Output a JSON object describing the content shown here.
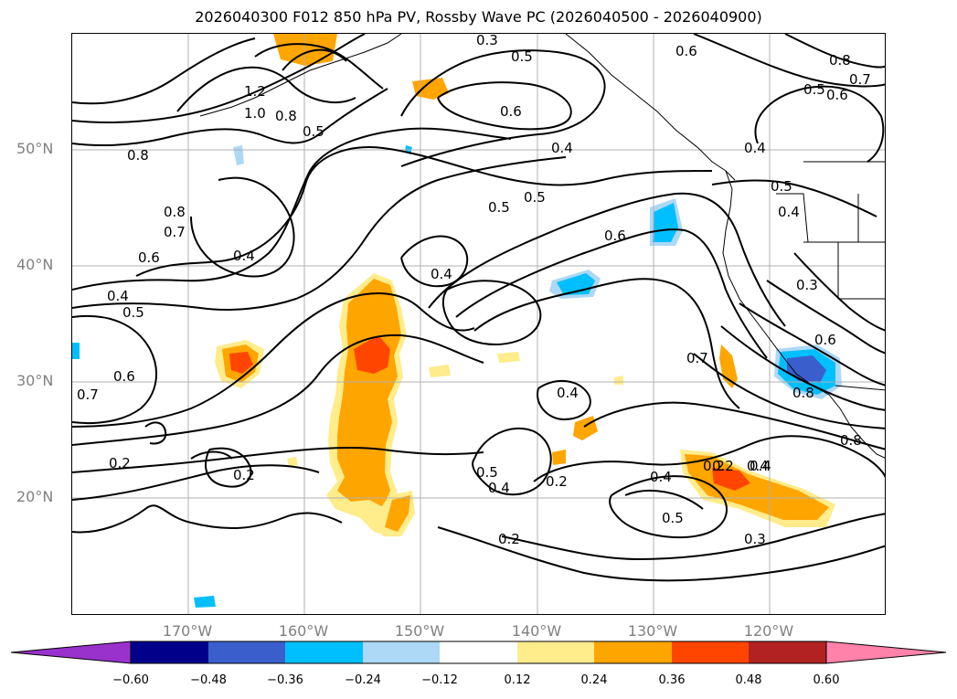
{
  "title": "2026040300 F012 850 hPa PV, Rossby Wave PC (2026040500 - 2026040900)",
  "lat_labels": [
    "50°N",
    "40°N",
    "30°N",
    "20°N"
  ],
  "lon_labels": [
    "170°W",
    "160°W",
    "150°W",
    "140°W",
    "130°W",
    "120°W"
  ],
  "colorbar": {
    "ticks": [
      "−0.60",
      "−0.48",
      "−0.36",
      "−0.24",
      "−0.12",
      "0.12",
      "0.24",
      "0.36",
      "0.48",
      "0.60"
    ],
    "colors": [
      "#9932cc",
      "#00008b",
      "#3a5fcd",
      "#00bfff",
      "#add8f6",
      "#ffffff",
      "#ffec8b",
      "#ffa500",
      "#ff4500",
      "#b22222",
      "#ff82ab"
    ]
  },
  "contour_labels": [
    "0.3",
    "0.5",
    "0.6",
    "0.8",
    "0.7",
    "0.5",
    "0.6",
    "1.2",
    "1.0",
    "0.8",
    "0.5",
    "0.6",
    "0.4",
    "0.4",
    "0.8",
    "0.5",
    "0.5",
    "0.5",
    "0.4",
    "0.8",
    "0.7",
    "0.6",
    "0.4",
    "0.4",
    "0.6",
    "0.4",
    "0.3",
    "0.4",
    "0.5",
    "0.7",
    "0.6",
    "0.7",
    "0.8",
    "0.8",
    "0.6",
    "0.4",
    "0.2",
    "0.2",
    "0.5",
    "0.4",
    "0.2",
    "0.2",
    "0.4",
    "0.2",
    "0.4",
    "0.5",
    "0.3",
    "0.2"
  ],
  "colors": {
    "land_outline": "#000000",
    "contour": "#000000",
    "grid": "#b0b0b0",
    "axis_label": "#808080"
  }
}
